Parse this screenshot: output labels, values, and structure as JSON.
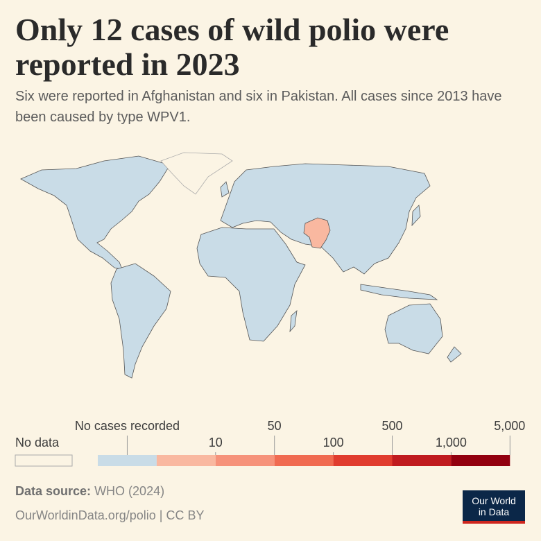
{
  "title": "Only 12 cases of wild polio were reported in 2023",
  "subtitle": "Six were reported in Afghanistan and six in Pakistan. All cases since 2013 have been caused by type WPV1.",
  "legend": {
    "no_data_label": "No data",
    "no_cases_label": "No cases recorded",
    "no_cases_color": "#c9dce7",
    "ticks": [
      10,
      50,
      100,
      500,
      {
        "value": 1000,
        "label": "1,000"
      },
      {
        "value": 5000,
        "label": "5,000"
      }
    ],
    "colors": [
      "#f9b8a0",
      "#f6927a",
      "#f06a50",
      "#e03c2e",
      "#c01b1f",
      "#92000f"
    ]
  },
  "source": {
    "label": "Data source:",
    "text": "WHO (2024)",
    "url": "OurWorldinData.org/polio | CC BY"
  },
  "logo": {
    "line1": "Our World",
    "line2": "in Data"
  }
}
